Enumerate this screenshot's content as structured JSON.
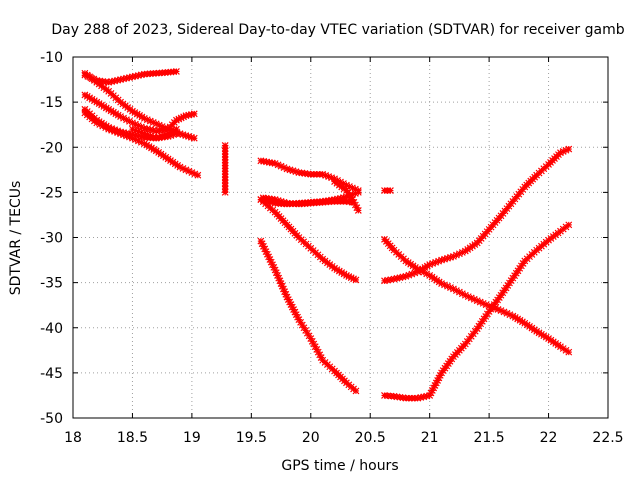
{
  "chart_data": {
    "type": "scatter",
    "title": "Day 288 of 2023, Sidereal Day-to-day VTEC variation (SDTVAR) for receiver gamb",
    "xlabel": "GPS time / hours",
    "ylabel": "SDTVAR / TECUs",
    "xlim": [
      18,
      22.5
    ],
    "ylim": [
      -50,
      -10
    ],
    "xticks": [
      18,
      18.5,
      19,
      19.5,
      20,
      20.5,
      21,
      21.5,
      22,
      22.5
    ],
    "yticks": [
      -10,
      -15,
      -20,
      -25,
      -30,
      -35,
      -40,
      -45,
      -50
    ],
    "xtick_labels": [
      "18",
      "18.5",
      "19",
      "19.5",
      "20",
      "20.5",
      "21",
      "21.5",
      "22",
      "22.5"
    ],
    "ytick_labels": [
      "-10",
      "-15",
      "-20",
      "-25",
      "-30",
      "-35",
      "-40",
      "-45",
      "-50"
    ],
    "grid": true,
    "marker": "star",
    "color": "#ff0000",
    "series": [
      {
        "points": [
          [
            18.1,
            -12.0
          ],
          [
            18.2,
            -12.6
          ],
          [
            18.3,
            -12.8
          ],
          [
            18.4,
            -12.5
          ],
          [
            18.5,
            -12.2
          ],
          [
            18.6,
            -11.9
          ],
          [
            18.7,
            -11.8
          ],
          [
            18.8,
            -11.7
          ],
          [
            18.87,
            -11.6
          ]
        ]
      },
      {
        "points": [
          [
            18.1,
            -11.8
          ],
          [
            18.2,
            -12.8
          ],
          [
            18.3,
            -13.8
          ],
          [
            18.4,
            -15.0
          ],
          [
            18.5,
            -16.0
          ],
          [
            18.6,
            -16.8
          ],
          [
            18.7,
            -17.4
          ],
          [
            18.8,
            -18.0
          ],
          [
            18.9,
            -18.5
          ],
          [
            19.02,
            -19.0
          ]
        ]
      },
      {
        "points": [
          [
            18.1,
            -14.2
          ],
          [
            18.2,
            -15.0
          ],
          [
            18.3,
            -15.8
          ],
          [
            18.4,
            -16.6
          ],
          [
            18.5,
            -17.3
          ],
          [
            18.6,
            -17.9
          ],
          [
            18.7,
            -18.2
          ],
          [
            18.8,
            -18.0
          ],
          [
            18.87,
            -17.0
          ],
          [
            18.95,
            -16.5
          ],
          [
            19.02,
            -16.3
          ]
        ]
      },
      {
        "points": [
          [
            18.1,
            -15.8
          ],
          [
            18.2,
            -17.0
          ],
          [
            18.3,
            -17.8
          ],
          [
            18.4,
            -18.3
          ],
          [
            18.5,
            -18.6
          ],
          [
            18.6,
            -18.9
          ],
          [
            18.7,
            -19.0
          ],
          [
            18.8,
            -18.5
          ],
          [
            18.87,
            -18.0
          ]
        ]
      },
      {
        "points": [
          [
            18.1,
            -16.2
          ],
          [
            18.2,
            -17.3
          ],
          [
            18.3,
            -18.0
          ],
          [
            18.4,
            -18.5
          ],
          [
            18.5,
            -19.0
          ],
          [
            18.6,
            -19.6
          ],
          [
            18.7,
            -20.4
          ],
          [
            18.8,
            -21.3
          ],
          [
            18.9,
            -22.2
          ],
          [
            19.0,
            -22.8
          ],
          [
            19.05,
            -23.1
          ]
        ]
      },
      {
        "points": [
          [
            18.5,
            -18.0
          ],
          [
            18.6,
            -18.5
          ],
          [
            18.7,
            -19.0
          ],
          [
            18.8,
            -18.8
          ],
          [
            18.87,
            -18.5
          ]
        ]
      },
      {
        "points": [
          [
            19.28,
            -19.8
          ],
          [
            19.28,
            -23.3
          ],
          [
            19.28,
            -25.0
          ]
        ]
      },
      {
        "points": [
          [
            19.58,
            -21.5
          ],
          [
            19.7,
            -21.8
          ],
          [
            19.8,
            -22.4
          ],
          [
            19.9,
            -22.8
          ],
          [
            20.0,
            -23.0
          ],
          [
            20.1,
            -23.0
          ],
          [
            20.2,
            -23.5
          ],
          [
            20.3,
            -24.2
          ],
          [
            20.4,
            -24.8
          ]
        ]
      },
      {
        "points": [
          [
            19.58,
            -25.8
          ],
          [
            19.7,
            -26.2
          ],
          [
            19.8,
            -26.3
          ],
          [
            19.9,
            -26.2
          ],
          [
            20.0,
            -26.1
          ],
          [
            20.1,
            -26.0
          ],
          [
            20.2,
            -25.8
          ],
          [
            20.3,
            -25.5
          ],
          [
            20.4,
            -25.0
          ]
        ]
      },
      {
        "points": [
          [
            19.6,
            -25.6
          ],
          [
            19.7,
            -25.8
          ],
          [
            19.8,
            -26.2
          ],
          [
            19.9,
            -26.3
          ],
          [
            20.0,
            -26.2
          ],
          [
            20.1,
            -26.1
          ],
          [
            20.2,
            -26.0
          ],
          [
            20.3,
            -26.0
          ],
          [
            20.35,
            -26.1
          ]
        ]
      },
      {
        "points": [
          [
            20.2,
            -23.8
          ],
          [
            20.3,
            -24.8
          ],
          [
            20.35,
            -25.8
          ],
          [
            20.4,
            -27.0
          ]
        ]
      },
      {
        "points": [
          [
            19.58,
            -25.8
          ],
          [
            19.7,
            -27.2
          ],
          [
            19.8,
            -28.6
          ],
          [
            19.9,
            -30.0
          ],
          [
            20.0,
            -31.2
          ],
          [
            20.1,
            -32.4
          ],
          [
            20.2,
            -33.4
          ],
          [
            20.3,
            -34.2
          ],
          [
            20.38,
            -34.7
          ]
        ]
      },
      {
        "points": [
          [
            19.58,
            -30.4
          ],
          [
            19.7,
            -33.6
          ],
          [
            19.8,
            -36.6
          ],
          [
            19.9,
            -39.1
          ],
          [
            20.0,
            -41.2
          ],
          [
            20.1,
            -43.6
          ],
          [
            20.2,
            -44.8
          ],
          [
            20.3,
            -46.1
          ],
          [
            20.38,
            -47.0
          ]
        ]
      },
      {
        "points": [
          [
            20.62,
            -24.8
          ],
          [
            20.67,
            -24.8
          ]
        ]
      },
      {
        "points": [
          [
            20.62,
            -34.8
          ],
          [
            20.7,
            -34.6
          ],
          [
            20.8,
            -34.3
          ],
          [
            20.9,
            -33.8
          ],
          [
            21.0,
            -33.0
          ],
          [
            21.1,
            -32.5
          ],
          [
            21.2,
            -32.1
          ],
          [
            21.3,
            -31.5
          ],
          [
            21.4,
            -30.6
          ],
          [
            21.5,
            -29.1
          ],
          [
            21.6,
            -27.6
          ],
          [
            21.7,
            -26.0
          ],
          [
            21.8,
            -24.4
          ],
          [
            21.9,
            -23.1
          ],
          [
            22.0,
            -21.9
          ],
          [
            22.1,
            -20.6
          ],
          [
            22.17,
            -20.2
          ]
        ]
      },
      {
        "points": [
          [
            20.62,
            -30.2
          ],
          [
            20.7,
            -31.4
          ],
          [
            20.8,
            -32.6
          ],
          [
            20.9,
            -33.5
          ],
          [
            21.0,
            -34.2
          ],
          [
            21.1,
            -35.1
          ],
          [
            21.2,
            -35.7
          ],
          [
            21.3,
            -36.4
          ],
          [
            21.4,
            -37.0
          ],
          [
            21.5,
            -37.6
          ],
          [
            21.6,
            -38.1
          ],
          [
            21.7,
            -38.7
          ],
          [
            21.8,
            -39.5
          ],
          [
            21.9,
            -40.4
          ],
          [
            22.0,
            -41.2
          ],
          [
            22.1,
            -42.1
          ],
          [
            22.17,
            -42.7
          ]
        ]
      },
      {
        "points": [
          [
            20.62,
            -47.5
          ],
          [
            20.7,
            -47.6
          ],
          [
            20.8,
            -47.8
          ],
          [
            20.9,
            -47.8
          ],
          [
            21.0,
            -47.5
          ],
          [
            21.1,
            -45.0
          ],
          [
            21.2,
            -43.2
          ],
          [
            21.3,
            -41.8
          ],
          [
            21.4,
            -40.1
          ],
          [
            21.5,
            -38.2
          ],
          [
            21.6,
            -36.4
          ],
          [
            21.7,
            -34.5
          ],
          [
            21.8,
            -32.6
          ],
          [
            21.9,
            -31.4
          ],
          [
            22.0,
            -30.3
          ],
          [
            22.1,
            -29.3
          ],
          [
            22.17,
            -28.6
          ]
        ]
      }
    ]
  }
}
